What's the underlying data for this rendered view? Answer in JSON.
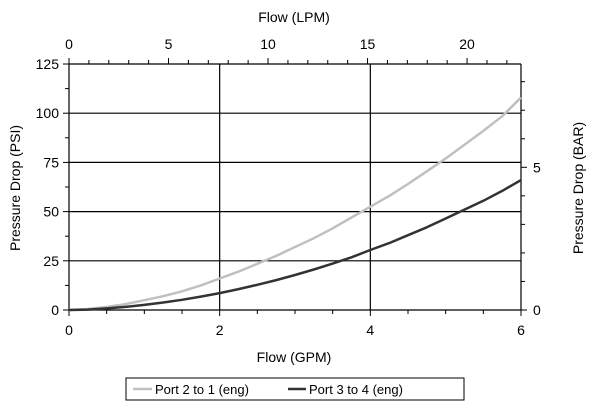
{
  "chart_data": {
    "type": "line",
    "xlabel_bottom": "Flow (GPM)",
    "xlabel_top": "Flow (LPM)",
    "ylabel_left": "Pressure Drop (PSI)",
    "ylabel_right": "Pressure Drop (BAR)",
    "x_bottom": {
      "range": [
        0,
        6
      ],
      "ticks": [
        "0",
        "2",
        "4",
        "6"
      ],
      "tick_values": [
        0,
        2,
        4,
        6
      ],
      "minor_step": 0.5
    },
    "x_top": {
      "range": [
        0,
        22.71
      ],
      "ticks": [
        "0",
        "5",
        "10",
        "15",
        "20"
      ],
      "tick_values": [
        0,
        5,
        10,
        15,
        20
      ],
      "minor_step": 1
    },
    "y_left": {
      "range": [
        0,
        125
      ],
      "ticks": [
        "0",
        "25",
        "50",
        "75",
        "100",
        "125"
      ],
      "tick_values": [
        0,
        25,
        50,
        75,
        100,
        125
      ],
      "minor_step": 12.5
    },
    "y_right": {
      "range": [
        0,
        8.62
      ],
      "ticks": [
        "0",
        "5"
      ],
      "tick_values": [
        0,
        5
      ],
      "minor_step": 1
    },
    "grid": {
      "horizontal_at": [
        25,
        50,
        75,
        100
      ],
      "vertical_at": [
        2,
        4
      ]
    },
    "legend_position": "bottom",
    "series": [
      {
        "name": "Port 2 to 1 (eng)",
        "color": "#c0c0c0",
        "x": [
          0,
          0.25,
          0.5,
          0.75,
          1,
          1.25,
          1.5,
          1.75,
          2,
          2.25,
          2.5,
          2.75,
          3,
          3.25,
          3.5,
          3.75,
          4,
          4.25,
          4.5,
          4.75,
          5,
          5.25,
          5.5,
          5.75,
          6
        ],
        "y": [
          0,
          0.5,
          1.5,
          3,
          5,
          7,
          9.5,
          12.5,
          16,
          19.5,
          23.5,
          27.5,
          32,
          36.5,
          41.5,
          47,
          52.5,
          58,
          64,
          70.5,
          77,
          84,
          91,
          98.5,
          108
        ]
      },
      {
        "name": "Port 3 to 4 (eng)",
        "color": "#333333",
        "x": [
          0,
          0.25,
          0.5,
          0.75,
          1,
          1.25,
          1.5,
          1.75,
          2,
          2.25,
          2.5,
          2.75,
          3,
          3.25,
          3.5,
          3.75,
          4,
          4.25,
          4.5,
          4.75,
          5,
          5.25,
          5.5,
          5.75,
          6
        ],
        "y": [
          0,
          0.2,
          0.8,
          1.6,
          2.6,
          3.8,
          5.2,
          6.8,
          8.6,
          10.6,
          12.8,
          15.2,
          17.8,
          20.6,
          23.6,
          26.8,
          30.5,
          34,
          38,
          42,
          46.5,
          51,
          55.5,
          60.5,
          66
        ]
      }
    ]
  }
}
